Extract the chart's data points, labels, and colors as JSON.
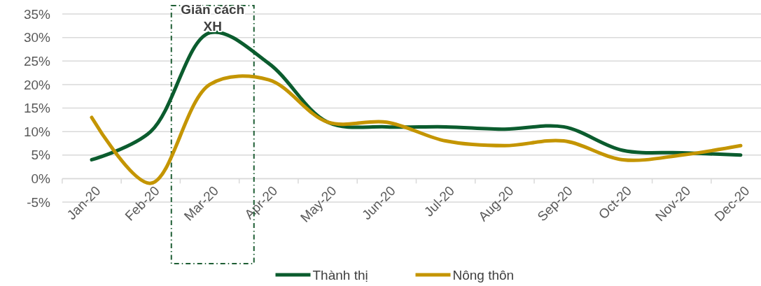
{
  "chart_data": {
    "type": "line",
    "categories": [
      "Jan-20",
      "Feb-20",
      "Mar-20",
      "Apr-20",
      "May-20",
      "Jun-20",
      "Jul-20",
      "Aug-20",
      "Sep-20",
      "Oct-20",
      "Nov-20",
      "Dec-20"
    ],
    "series": [
      {
        "name": "Thành thị",
        "color": "#0b5c2e",
        "values": [
          4,
          10,
          31,
          24.5,
          12,
          11,
          11,
          10.5,
          11,
          6,
          5.5,
          5
        ]
      },
      {
        "name": "Nông thôn",
        "color": "#c49500",
        "values": [
          13,
          -1,
          20,
          21,
          12,
          12,
          8,
          7,
          8,
          4,
          5,
          7
        ]
      }
    ],
    "ylim": [
      -5,
      35
    ],
    "yticks": [
      {
        "value": -5,
        "label": "-5%"
      },
      {
        "value": 0,
        "label": "0%"
      },
      {
        "value": 5,
        "label": "5%"
      },
      {
        "value": 10,
        "label": "10%"
      },
      {
        "value": 15,
        "label": "15%"
      },
      {
        "value": 20,
        "label": "20%"
      },
      {
        "value": 25,
        "label": "25%"
      },
      {
        "value": 30,
        "label": "30%"
      },
      {
        "value": 35,
        "label": "35%"
      }
    ],
    "annotations": [
      "Giãn cách XH"
    ],
    "grid": "y",
    "legend": "bottom",
    "marker": "none",
    "line_style": "solid"
  }
}
